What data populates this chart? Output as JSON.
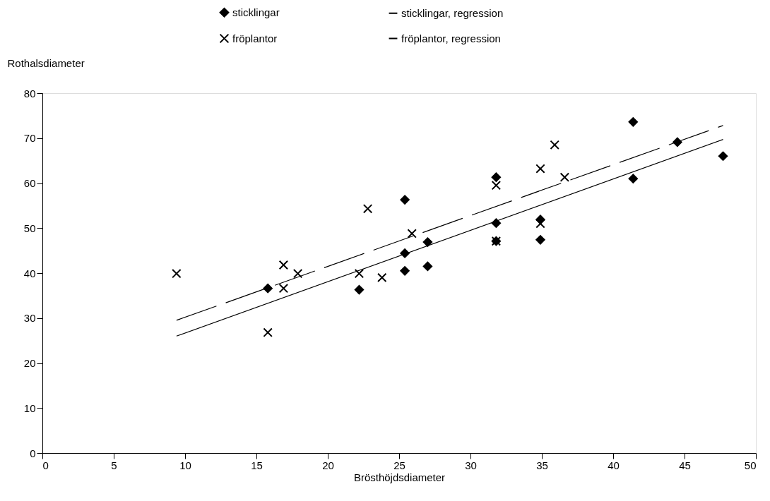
{
  "chart_data": {
    "type": "scatter",
    "xlabel": "Brösthöjdsdiameter",
    "ylabel": "Rothalsdiameter",
    "xlim": [
      0,
      50
    ],
    "xticks": [
      0,
      5,
      10,
      15,
      20,
      25,
      30,
      35,
      40,
      45,
      50
    ],
    "ylim": [
      0,
      80
    ],
    "yticks": [
      0,
      10,
      20,
      30,
      40,
      50,
      60,
      70,
      80
    ],
    "grid": false,
    "legend": "top",
    "series": [
      {
        "name": "sticklingar",
        "marker": "diamond",
        "color": "#000000",
        "x": [
          15.8,
          22.2,
          25.4,
          25.4,
          25.4,
          27.0,
          27.0,
          31.8,
          31.8,
          31.8,
          34.9,
          34.9,
          41.4,
          41.4,
          44.5,
          47.7
        ],
        "values": [
          36.6,
          36.3,
          56.3,
          44.4,
          40.5,
          46.9,
          41.5,
          61.3,
          51.1,
          47.1,
          47.4,
          51.9,
          73.6,
          61.0,
          69.1,
          66.0
        ]
      },
      {
        "name": "fröplantor",
        "marker": "cross",
        "color": "#000000",
        "x": [
          9.4,
          15.8,
          16.9,
          16.9,
          17.9,
          22.2,
          22.8,
          23.8,
          25.9,
          31.8,
          31.8,
          34.9,
          34.9,
          35.9,
          36.6
        ],
        "values": [
          39.9,
          26.8,
          41.8,
          36.6,
          39.9,
          39.9,
          54.3,
          39.0,
          48.8,
          59.5,
          47.1,
          51.0,
          63.2,
          68.5,
          61.3
        ]
      },
      {
        "name": "sticklingar, regression",
        "type": "line",
        "line_style": "solid",
        "marker": "none",
        "color": "#000000",
        "x": [
          9.4,
          47.7
        ],
        "values": [
          26.0,
          69.7
        ]
      },
      {
        "name": "fröplantor, regression",
        "type": "line",
        "line_style": "dashed",
        "marker": "none",
        "color": "#000000",
        "x": [
          9.4,
          47.7
        ],
        "values": [
          29.5,
          72.8
        ]
      }
    ]
  }
}
